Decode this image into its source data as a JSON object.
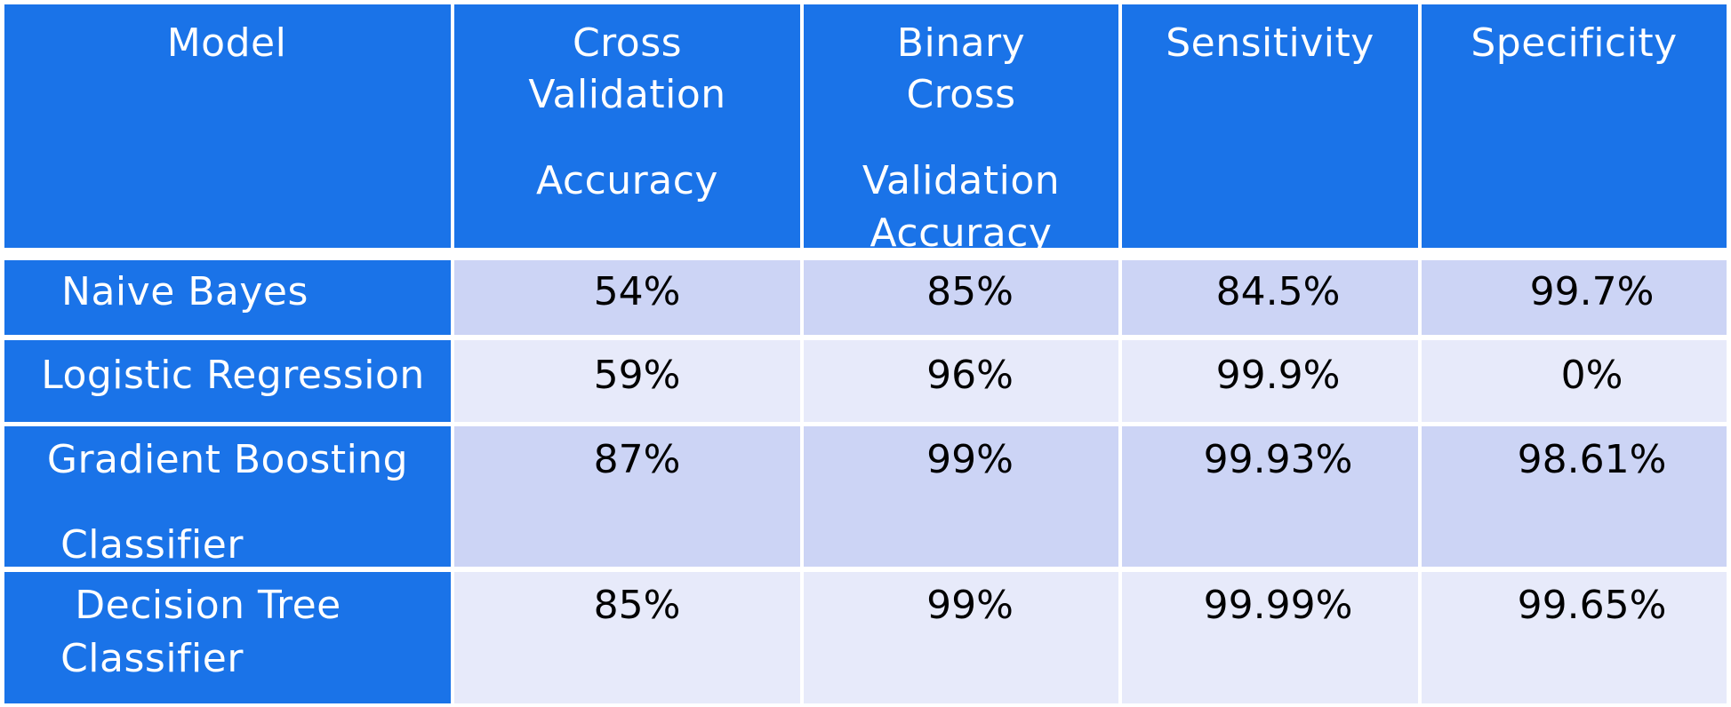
{
  "colors": {
    "header_bg": "#1a73e8",
    "row_odd_bg": "#ccd4f5",
    "row_even_bg": "#e7eafa",
    "header_text": "#ffffff",
    "value_text": "#000000"
  },
  "table": {
    "headers": {
      "model": [
        "Model"
      ],
      "cv_accuracy": [
        "Cross",
        "Validation",
        "Accuracy"
      ],
      "binary_cv_accuracy": [
        "Binary",
        "Cross",
        "Validation",
        "Accuracy"
      ],
      "sensitivity": [
        "Sensitivity"
      ],
      "specificity": [
        "Specificity"
      ]
    },
    "rows": [
      {
        "model": [
          "Naive Bayes"
        ],
        "cv_accuracy": "54%",
        "binary_cv_accuracy": "85%",
        "sensitivity": "84.5%",
        "specificity": "99.7%"
      },
      {
        "model": [
          "Logistic Regression"
        ],
        "cv_accuracy": "59%",
        "binary_cv_accuracy": "96%",
        "sensitivity": "99.9%",
        "specificity": "0%"
      },
      {
        "model": [
          "Gradient Boosting",
          "Classifier"
        ],
        "cv_accuracy": "87%",
        "binary_cv_accuracy": "99%",
        "sensitivity": "99.93%",
        "specificity": "98.61%"
      },
      {
        "model": [
          "Decision Tree",
          "Classifier"
        ],
        "cv_accuracy": "85%",
        "binary_cv_accuracy": "99%",
        "sensitivity": "99.99%",
        "specificity": "99.65%"
      }
    ]
  }
}
